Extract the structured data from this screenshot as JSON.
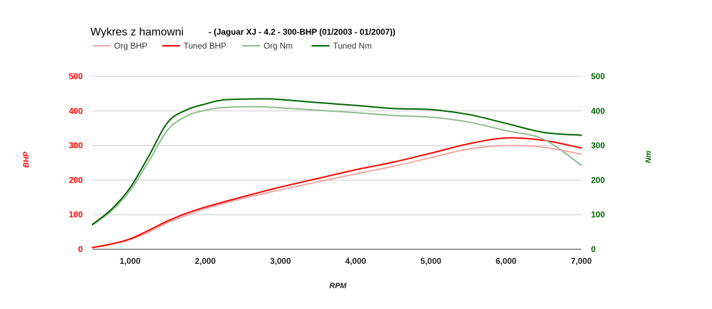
{
  "chart_data": {
    "type": "line",
    "title": "Wykres z hamowni",
    "subtitle": "- (Jaguar XJ - 4.2 - 300-BHP (01/2003 - 01/2007))",
    "xlabel": "RPM",
    "ylabel_left": "BHP",
    "ylabel_right": "Nm",
    "xlim": [
      500,
      7000
    ],
    "ylim_left": [
      0,
      500
    ],
    "ylim_right": [
      0,
      500
    ],
    "x_ticks": [
      1000,
      2000,
      3000,
      4000,
      5000,
      6000,
      7000
    ],
    "x_tick_labels": [
      "1,000",
      "2,000",
      "3,000",
      "4,000",
      "5,000",
      "6,000",
      "7,000"
    ],
    "y_ticks_left": [
      0,
      100,
      200,
      300,
      400,
      500
    ],
    "y_tick_labels_left": [
      "0",
      "100",
      "200",
      "300",
      "400",
      "500"
    ],
    "y_ticks_right": [
      0,
      100,
      200,
      300,
      400,
      500
    ],
    "y_tick_labels_right": [
      "0",
      "100",
      "200",
      "300",
      "400",
      "500"
    ],
    "grid": true,
    "legend_position": "top-left",
    "series": [
      {
        "name": "Org BHP",
        "axis": "left",
        "color": "#f4a6a6",
        "points": [
          [
            500,
            5
          ],
          [
            750,
            15
          ],
          [
            1000,
            28
          ],
          [
            1250,
            50
          ],
          [
            1500,
            77
          ],
          [
            1750,
            98
          ],
          [
            2000,
            117
          ],
          [
            2500,
            147
          ],
          [
            3000,
            172
          ],
          [
            3500,
            195
          ],
          [
            4000,
            218
          ],
          [
            4500,
            240
          ],
          [
            5000,
            265
          ],
          [
            5500,
            290
          ],
          [
            6000,
            300
          ],
          [
            6500,
            295
          ],
          [
            7000,
            275
          ]
        ]
      },
      {
        "name": "Tuned BHP",
        "axis": "left",
        "color": "#ff0000",
        "points": [
          [
            500,
            5
          ],
          [
            750,
            15
          ],
          [
            1000,
            30
          ],
          [
            1250,
            55
          ],
          [
            1500,
            82
          ],
          [
            1750,
            104
          ],
          [
            2000,
            122
          ],
          [
            2500,
            152
          ],
          [
            3000,
            180
          ],
          [
            3500,
            205
          ],
          [
            4000,
            230
          ],
          [
            4500,
            252
          ],
          [
            5000,
            278
          ],
          [
            5500,
            305
          ],
          [
            6000,
            322
          ],
          [
            6500,
            315
          ],
          [
            7000,
            293
          ]
        ]
      },
      {
        "name": "Org Nm",
        "axis": "right",
        "color": "#8fbc8f",
        "points": [
          [
            500,
            70
          ],
          [
            750,
            110
          ],
          [
            1000,
            170
          ],
          [
            1250,
            255
          ],
          [
            1500,
            345
          ],
          [
            1750,
            385
          ],
          [
            2000,
            402
          ],
          [
            2250,
            410
          ],
          [
            2750,
            412
          ],
          [
            3500,
            402
          ],
          [
            4000,
            395
          ],
          [
            4500,
            387
          ],
          [
            5000,
            382
          ],
          [
            5500,
            368
          ],
          [
            6000,
            343
          ],
          [
            6500,
            318
          ],
          [
            7000,
            243
          ]
        ]
      },
      {
        "name": "Tuned Nm",
        "axis": "right",
        "color": "#006400",
        "points": [
          [
            500,
            72
          ],
          [
            750,
            115
          ],
          [
            1000,
            178
          ],
          [
            1250,
            270
          ],
          [
            1500,
            367
          ],
          [
            1750,
            403
          ],
          [
            2000,
            420
          ],
          [
            2250,
            432
          ],
          [
            2750,
            435
          ],
          [
            3000,
            433
          ],
          [
            3500,
            424
          ],
          [
            4000,
            416
          ],
          [
            4500,
            407
          ],
          [
            5000,
            404
          ],
          [
            5500,
            390
          ],
          [
            6000,
            364
          ],
          [
            6500,
            338
          ],
          [
            7000,
            330
          ]
        ]
      }
    ]
  }
}
